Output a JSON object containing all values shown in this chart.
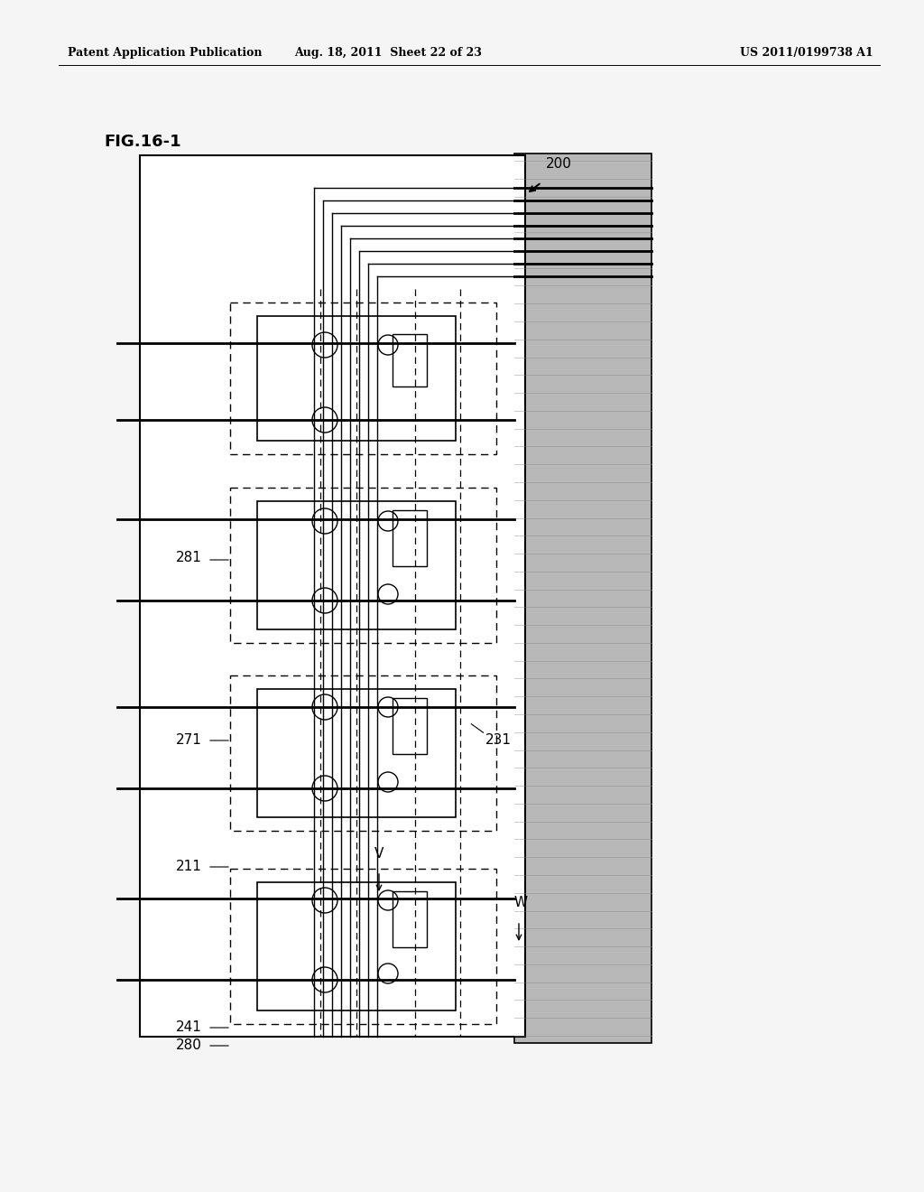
{
  "header_left": "Patent Application Publication",
  "header_center": "Aug. 18, 2011  Sheet 22 of 23",
  "header_right": "US 2011/0199738 A1",
  "fig_title": "FIG.16-1",
  "background_color": "#f5f5f5",
  "label_200": "200",
  "label_281": "281",
  "label_271": "271",
  "label_211": "211",
  "label_241": "241",
  "label_280": "280",
  "label_231": "231",
  "label_V": "V",
  "label_W": "W",
  "gray_color": "#b8b8b8",
  "gray_stripe_color": "#888888"
}
